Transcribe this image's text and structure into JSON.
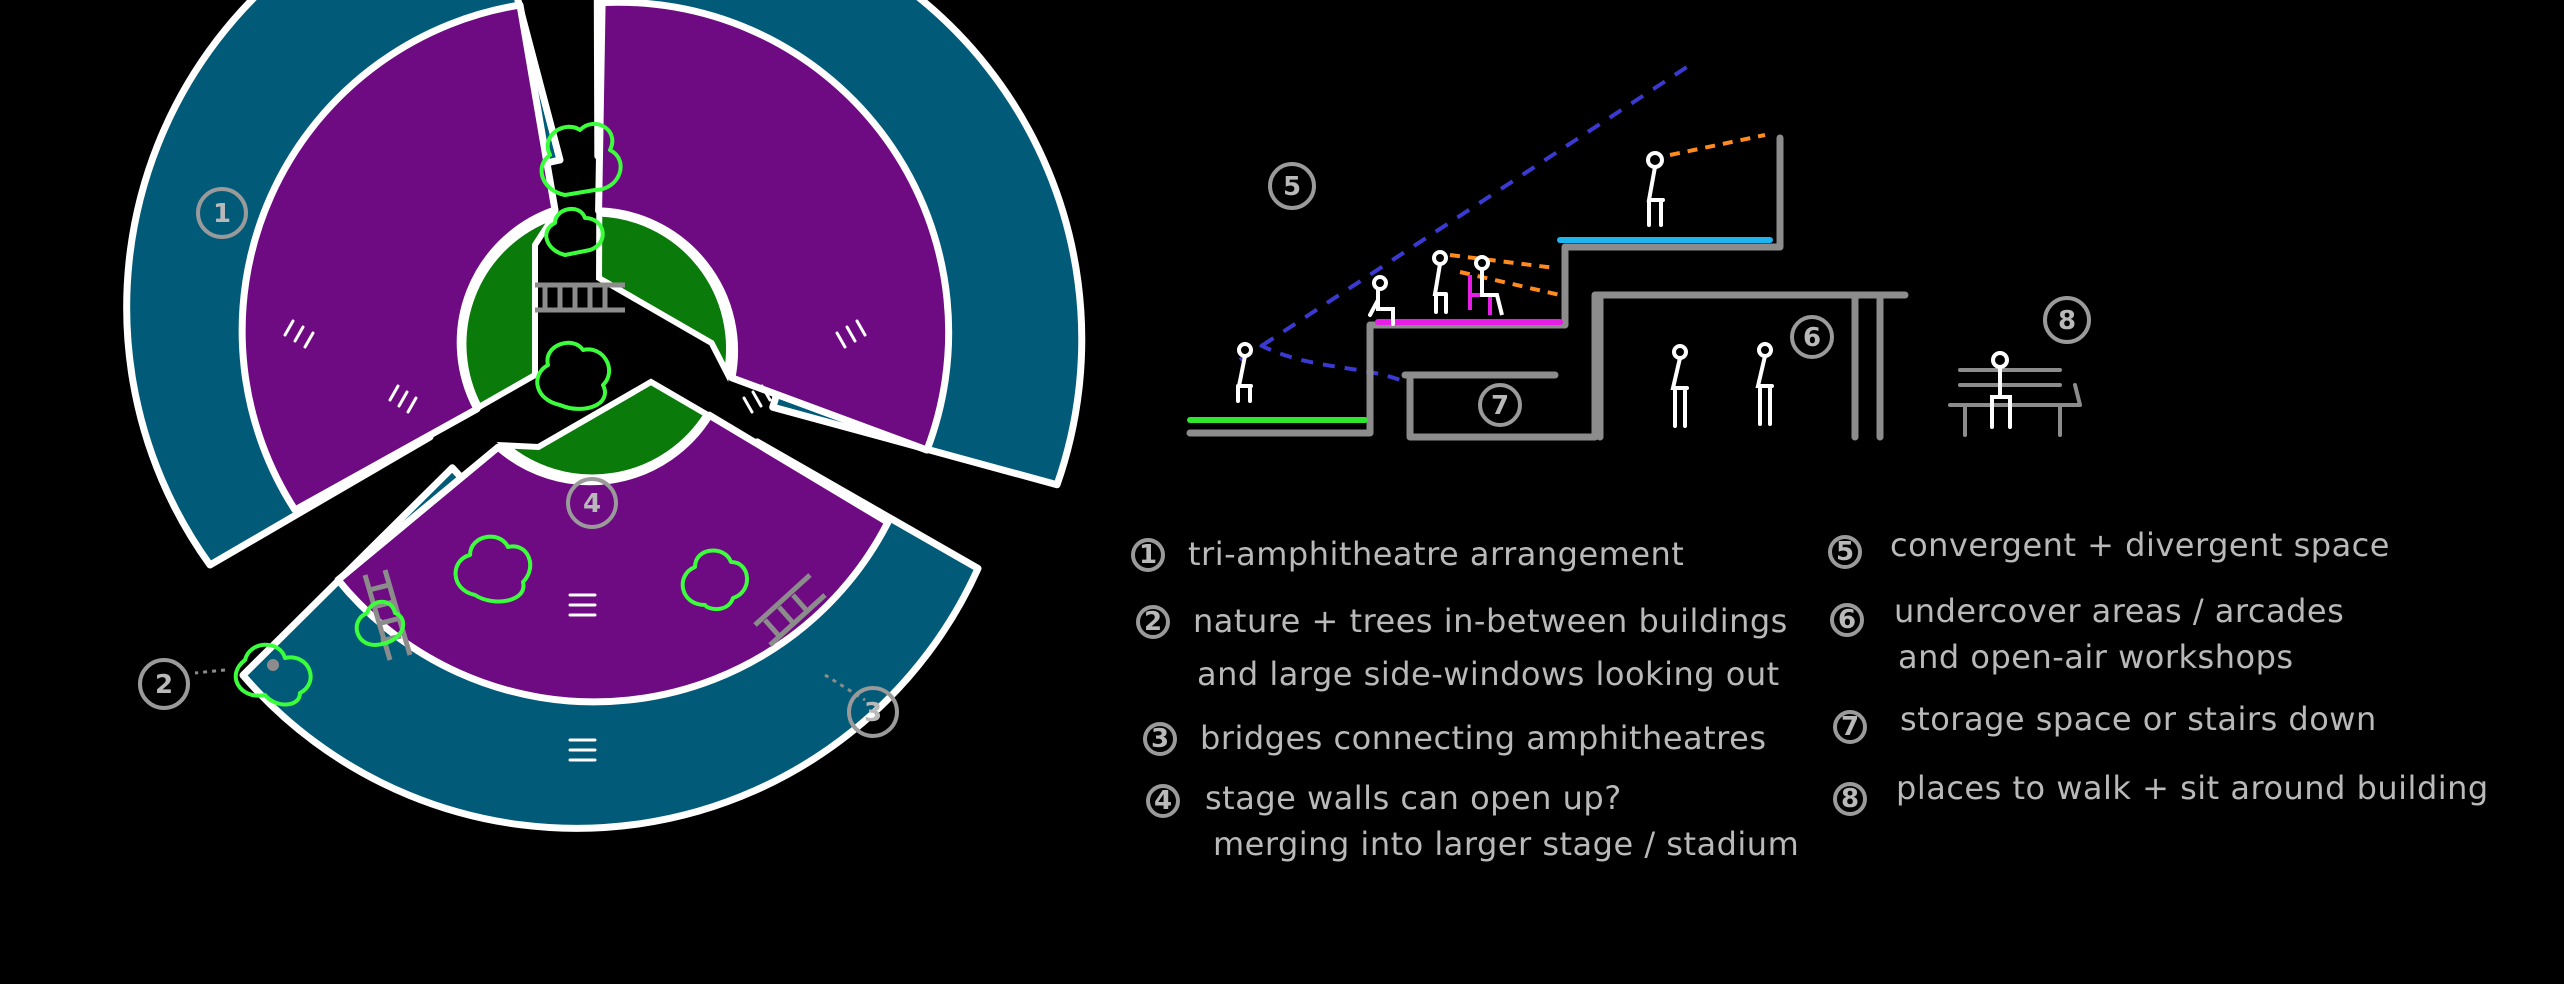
{
  "markers": {
    "m1": "1",
    "m2": "2",
    "m3": "3",
    "m4": "4",
    "m5": "5",
    "m6": "6",
    "m7": "7",
    "m8": "8"
  },
  "legend": [
    {
      "num": "1",
      "lines": [
        "tri-amphitheatre arrangement"
      ]
    },
    {
      "num": "2",
      "lines": [
        "nature + trees in-between buildings",
        "and large side-windows looking out"
      ]
    },
    {
      "num": "3",
      "lines": [
        "bridges connecting amphitheatres"
      ]
    },
    {
      "num": "4",
      "lines": [
        "stage walls can open up?",
        "merging into larger stage / stadium"
      ]
    },
    {
      "num": "5",
      "lines": [
        "convergent + divergent space"
      ]
    },
    {
      "num": "6",
      "lines": [
        "undercover areas / arcades",
        "and open-air workshops"
      ]
    },
    {
      "num": "7",
      "lines": [
        "storage space or stairs down"
      ]
    },
    {
      "num": "8",
      "lines": [
        "places to walk + sit around building"
      ]
    }
  ],
  "colors": {
    "background": "#000000",
    "outer_ring": "#005a78",
    "inner_ring": "#6e0a82",
    "stage": "#0a7a0a",
    "trees": "#3cff3c",
    "sightline_blue": "#3a3ad2",
    "sightline_orange": "#ff8a1e",
    "platform_green": "#2ee62e",
    "platform_magenta": "#e61ee6",
    "platform_cyan": "#1eb4f0"
  }
}
